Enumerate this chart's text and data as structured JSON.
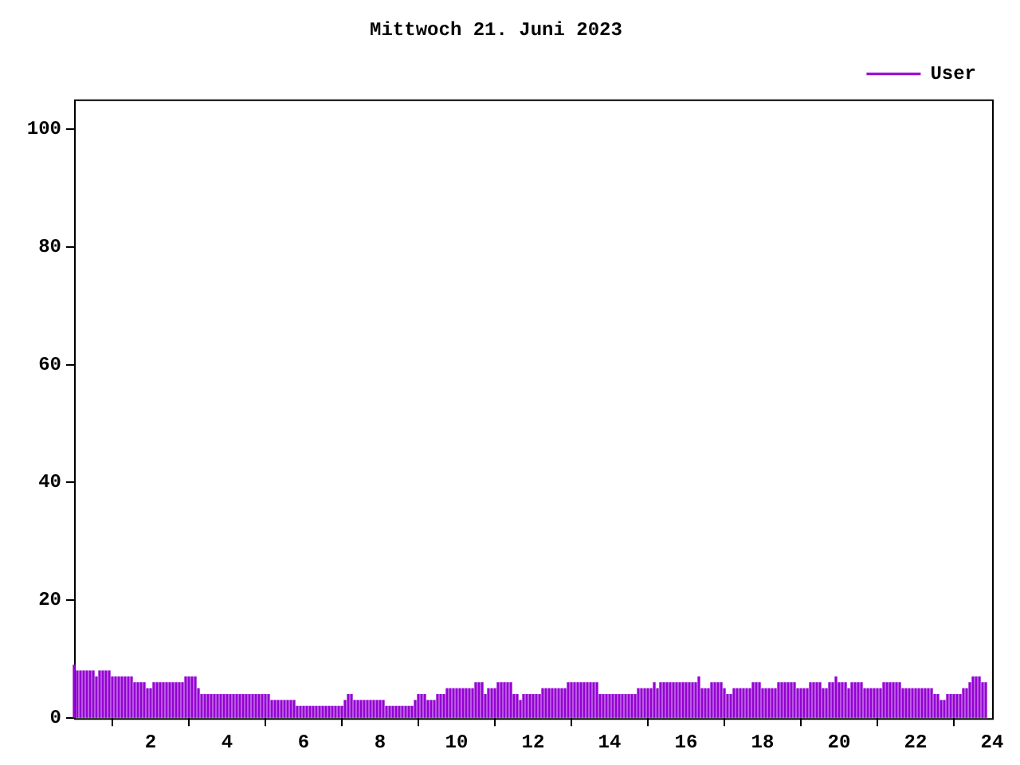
{
  "chart_data": {
    "type": "bar",
    "title": "Mittwoch 21. Juni 2023",
    "x": [
      0,
      0.083,
      0.167,
      0.25,
      0.333,
      0.417,
      0.5,
      0.583,
      0.667,
      0.75,
      0.833,
      0.917,
      1,
      1.083,
      1.167,
      1.25,
      1.333,
      1.417,
      1.5,
      1.583,
      1.667,
      1.75,
      1.833,
      1.917,
      2,
      2.083,
      2.167,
      2.25,
      2.333,
      2.417,
      2.5,
      2.583,
      2.667,
      2.75,
      2.833,
      2.917,
      3,
      3.083,
      3.167,
      3.25,
      3.333,
      3.417,
      3.5,
      3.583,
      3.667,
      3.75,
      3.833,
      3.917,
      4,
      4.083,
      4.167,
      4.25,
      4.333,
      4.417,
      4.5,
      4.583,
      4.667,
      4.75,
      4.833,
      4.917,
      5,
      5.083,
      5.167,
      5.25,
      5.333,
      5.417,
      5.5,
      5.583,
      5.667,
      5.75,
      5.833,
      5.917,
      6,
      6.083,
      6.167,
      6.25,
      6.333,
      6.417,
      6.5,
      6.583,
      6.667,
      6.75,
      6.833,
      6.917,
      7,
      7.083,
      7.167,
      7.25,
      7.333,
      7.417,
      7.5,
      7.583,
      7.667,
      7.75,
      7.833,
      7.917,
      8,
      8.083,
      8.167,
      8.25,
      8.333,
      8.417,
      8.5,
      8.583,
      8.667,
      8.75,
      8.833,
      8.917,
      9,
      9.083,
      9.167,
      9.25,
      9.333,
      9.417,
      9.5,
      9.583,
      9.667,
      9.75,
      9.833,
      9.917,
      10,
      10.083,
      10.167,
      10.25,
      10.333,
      10.417,
      10.5,
      10.583,
      10.667,
      10.75,
      10.833,
      10.917,
      11,
      11.083,
      11.167,
      11.25,
      11.333,
      11.417,
      11.5,
      11.583,
      11.667,
      11.75,
      11.833,
      11.917,
      12,
      12.083,
      12.167,
      12.25,
      12.333,
      12.417,
      12.5,
      12.583,
      12.667,
      12.75,
      12.833,
      12.917,
      13,
      13.083,
      13.167,
      13.25,
      13.333,
      13.417,
      13.5,
      13.583,
      13.667,
      13.75,
      13.833,
      13.917,
      14,
      14.083,
      14.167,
      14.25,
      14.333,
      14.417,
      14.5,
      14.583,
      14.667,
      14.75,
      14.833,
      14.917,
      15,
      15.083,
      15.167,
      15.25,
      15.333,
      15.417,
      15.5,
      15.583,
      15.667,
      15.75,
      15.833,
      15.917,
      16,
      16.083,
      16.167,
      16.25,
      16.333,
      16.417,
      16.5,
      16.583,
      16.667,
      16.75,
      16.833,
      16.917,
      17,
      17.083,
      17.167,
      17.25,
      17.333,
      17.417,
      17.5,
      17.583,
      17.667,
      17.75,
      17.833,
      17.917,
      18,
      18.083,
      18.167,
      18.25,
      18.333,
      18.417,
      18.5,
      18.583,
      18.667,
      18.75,
      18.833,
      18.917,
      19,
      19.083,
      19.167,
      19.25,
      19.333,
      19.417,
      19.5,
      19.583,
      19.667,
      19.75,
      19.833,
      19.917,
      20,
      20.083,
      20.167,
      20.25,
      20.333,
      20.417,
      20.5,
      20.583,
      20.667,
      20.75,
      20.833,
      20.917,
      21,
      21.083,
      21.167,
      21.25,
      21.333,
      21.417,
      21.5,
      21.583,
      21.667,
      21.75,
      21.833,
      21.917,
      22,
      22.083,
      22.167,
      22.25,
      22.333,
      22.417,
      22.5,
      22.583,
      22.667,
      22.75,
      22.833,
      22.917,
      23,
      23.083,
      23.167,
      23.25,
      23.333,
      23.417,
      23.5,
      23.583,
      23.667,
      23.75,
      23.833
    ],
    "series": [
      {
        "name": "User",
        "color": "#9400d3",
        "values": [
          9,
          8,
          8,
          8,
          8,
          8,
          8,
          7,
          8,
          8,
          8,
          8,
          7,
          7,
          7,
          7,
          7,
          7,
          7,
          6,
          6,
          6,
          6,
          5,
          5,
          6,
          6,
          6,
          6,
          6,
          6,
          6,
          6,
          6,
          6,
          7,
          7,
          7,
          7,
          5,
          4,
          4,
          4,
          4,
          4,
          4,
          4,
          4,
          4,
          4,
          4,
          4,
          4,
          4,
          4,
          4,
          4,
          4,
          4,
          4,
          4,
          4,
          3,
          3,
          3,
          3,
          3,
          3,
          3,
          3,
          2,
          2,
          2,
          2,
          2,
          2,
          2,
          2,
          2,
          2,
          2,
          2,
          2,
          2,
          2,
          3,
          4,
          4,
          3,
          3,
          3,
          3,
          3,
          3,
          3,
          3,
          3,
          3,
          2,
          2,
          2,
          2,
          2,
          2,
          2,
          2,
          2,
          3,
          4,
          4,
          4,
          3,
          3,
          3,
          4,
          4,
          4,
          5,
          5,
          5,
          5,
          5,
          5,
          5,
          5,
          5,
          6,
          6,
          6,
          4,
          5,
          5,
          5,
          6,
          6,
          6,
          6,
          6,
          4,
          4,
          3,
          4,
          4,
          4,
          4,
          4,
          4,
          5,
          5,
          5,
          5,
          5,
          5,
          5,
          5,
          6,
          6,
          6,
          6,
          6,
          6,
          6,
          6,
          6,
          6,
          4,
          4,
          4,
          4,
          4,
          4,
          4,
          4,
          4,
          4,
          4,
          4,
          5,
          5,
          5,
          5,
          5,
          6,
          5,
          6,
          6,
          6,
          6,
          6,
          6,
          6,
          6,
          6,
          6,
          6,
          6,
          7,
          5,
          5,
          5,
          6,
          6,
          6,
          6,
          5,
          4,
          4,
          5,
          5,
          5,
          5,
          5,
          5,
          6,
          6,
          6,
          5,
          5,
          5,
          5,
          5,
          6,
          6,
          6,
          6,
          6,
          6,
          5,
          5,
          5,
          5,
          6,
          6,
          6,
          6,
          5,
          5,
          6,
          6,
          7,
          6,
          6,
          6,
          5,
          6,
          6,
          6,
          6,
          5,
          5,
          5,
          5,
          5,
          5,
          6,
          6,
          6,
          6,
          6,
          6,
          5,
          5,
          5,
          5,
          5,
          5,
          5,
          5,
          5,
          5,
          4,
          4,
          3,
          3,
          4,
          4,
          4,
          4,
          4,
          5,
          5,
          6,
          7,
          7,
          7,
          6,
          6
        ]
      }
    ],
    "xlim": [
      0,
      24
    ],
    "xticks": [
      2,
      4,
      6,
      8,
      10,
      12,
      14,
      16,
      18,
      20,
      22,
      24
    ],
    "ylim": [
      0,
      105
    ],
    "yticks": [
      0,
      20,
      40,
      60,
      80,
      100
    ],
    "grid": false,
    "legend": "top right"
  }
}
